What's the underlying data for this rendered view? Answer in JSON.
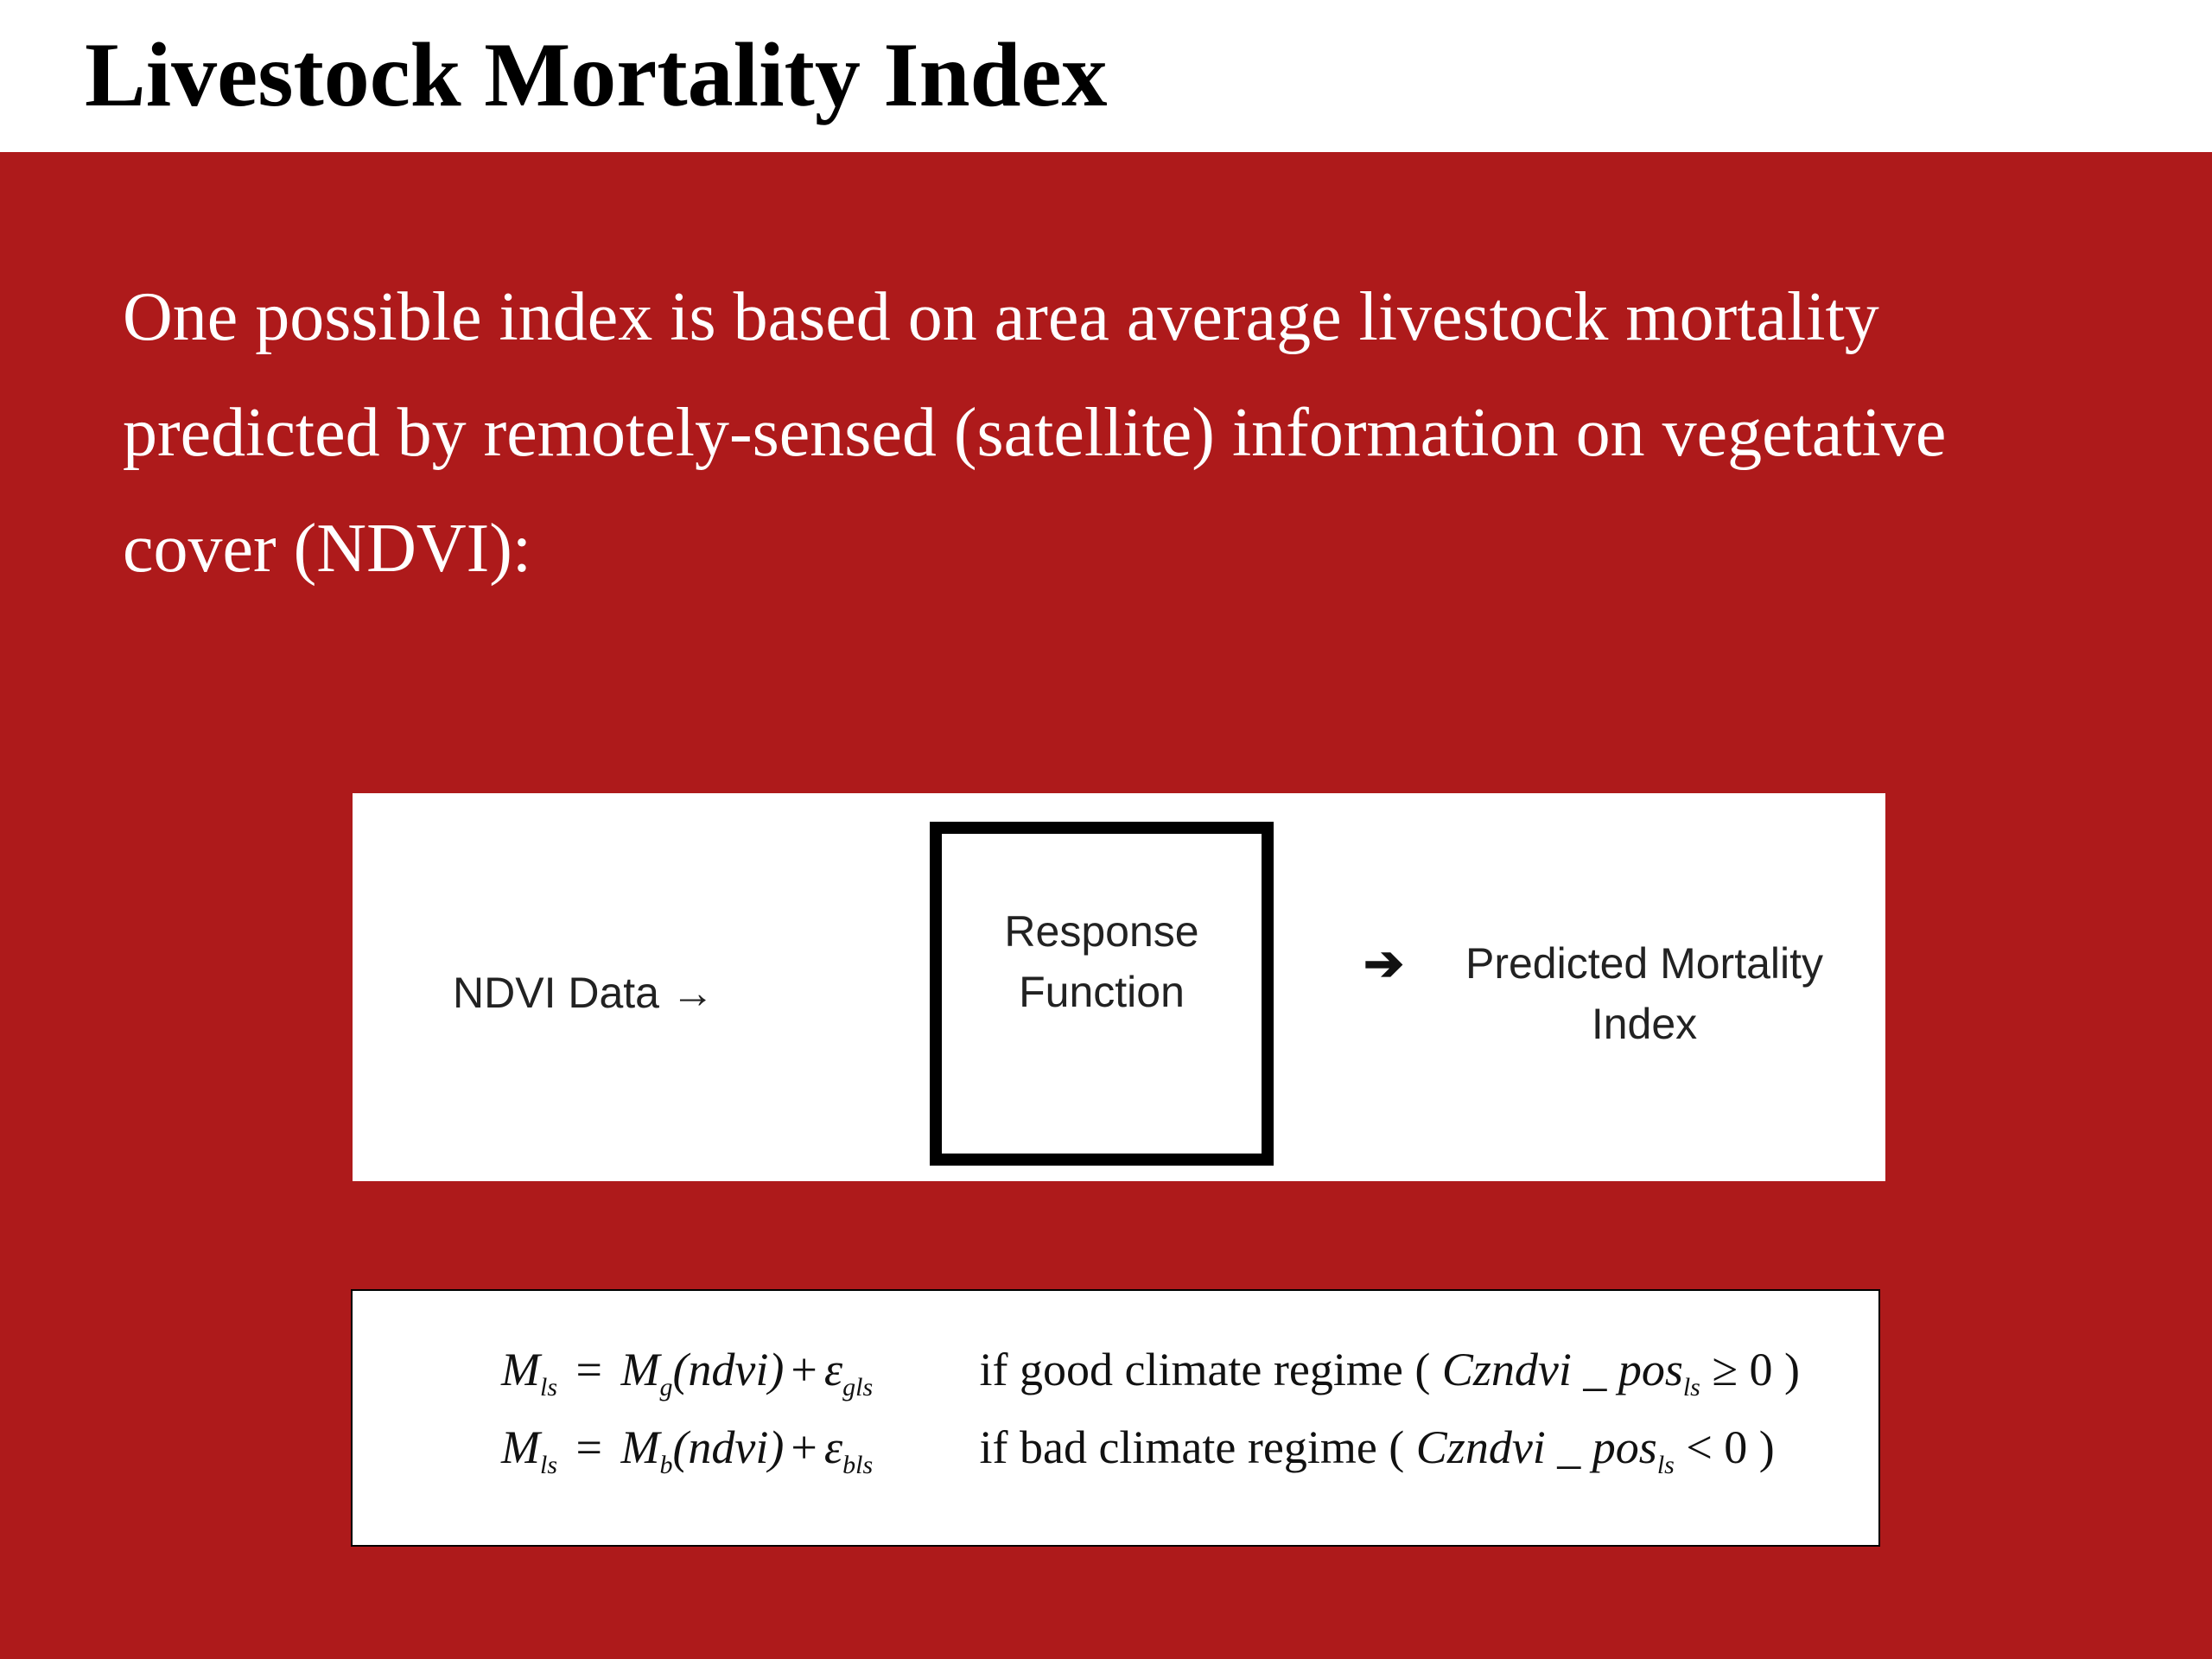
{
  "title": "Livestock Mortality Index",
  "body": {
    "lines": [
      "One possible index is based on area average livestock mortality",
      "predicted by remotely-sensed (satellite) information on vegetative",
      "cover (NDVI):"
    ]
  },
  "diagram": {
    "input_label": "NDVI Data",
    "input_arrow": "→",
    "process_lines": [
      "Response",
      "Function"
    ],
    "output_arrow": "➔",
    "output_lines": [
      "Predicted Mortality",
      "Index"
    ]
  },
  "formulas": [
    {
      "lhs": "M",
      "lhs_sub": "ls",
      "equals": "=",
      "fn": "M",
      "fn_sub": "g",
      "arg": "(ndvi)",
      "plus": "+",
      "err": "ε",
      "err_sub": "gls",
      "condition": "if good climate regime",
      "cond_var": "Czndvi _ pos",
      "cond_sub": "ls",
      "cond_op": "≥ 0"
    },
    {
      "lhs": "M",
      "lhs_sub": "ls",
      "equals": "=",
      "fn": "M",
      "fn_sub": "b",
      "arg": "(ndvi)",
      "plus": "+",
      "err": "ε",
      "err_sub": "bls",
      "condition": "if bad climate regime",
      "cond_var": "Czndvi _ pos",
      "cond_sub": "ls",
      "cond_op": "< 0"
    }
  ]
}
